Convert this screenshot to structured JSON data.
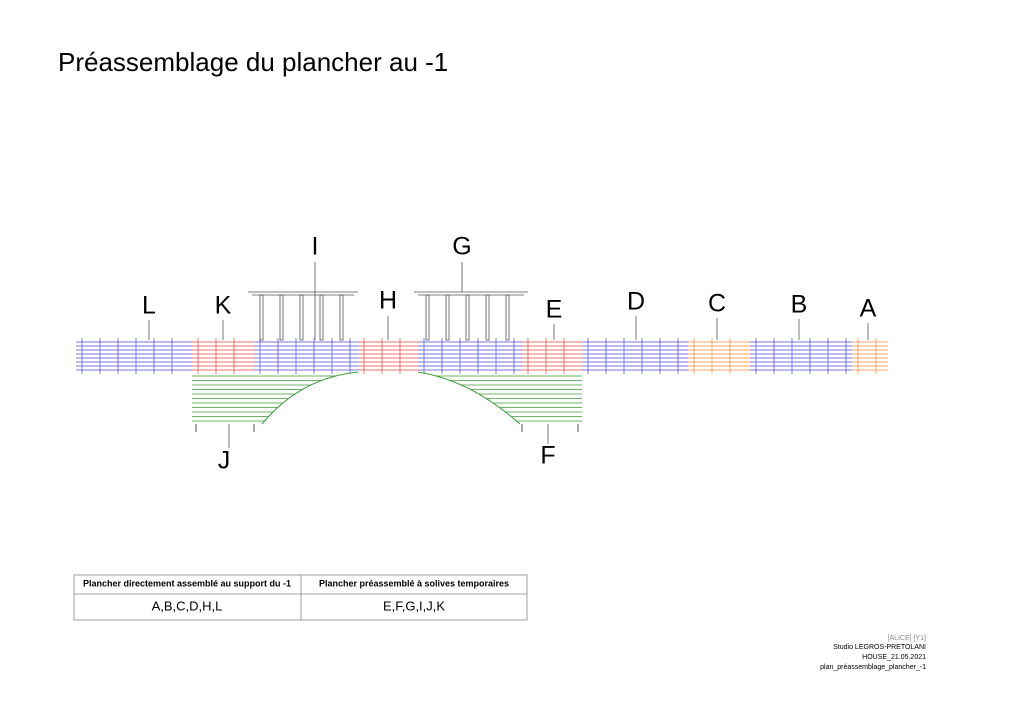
{
  "title": "Préassemblage du plancher au -1",
  "labels": {
    "I": "I",
    "G": "G",
    "L": "L",
    "K": "K",
    "H": "H",
    "E": "E",
    "D": "D",
    "C": "C",
    "B": "B",
    "A": "A",
    "J": "J",
    "F": "F"
  },
  "table": {
    "headers": [
      "Plancher directement assemblé au support du -1",
      "Plancher préassemblé à solives temporaires"
    ],
    "rows": [
      [
        "A,B,C,D,H,L",
        "E,F,G,I,J,K"
      ]
    ]
  },
  "footer": [
    "[ALICE] [Y1]",
    "Studio LEGROS-PRETOLANI",
    "HOUSE_21.05.2021",
    "plan_préassemblage_plancher_-1"
  ]
}
